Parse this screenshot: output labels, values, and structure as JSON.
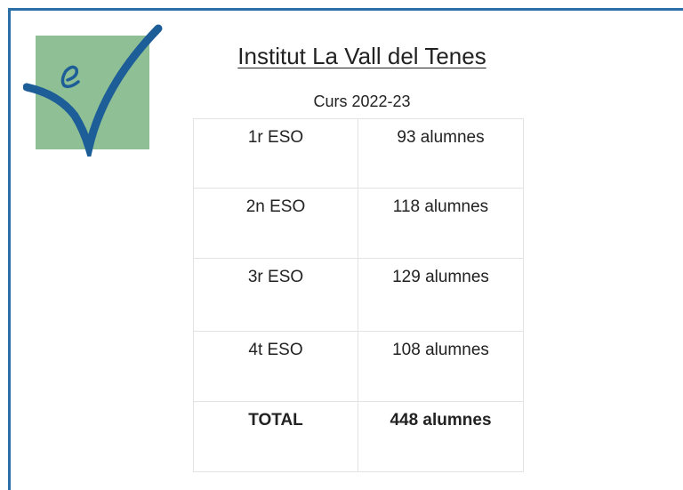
{
  "header": {
    "title": "Institut La Vall del Tenes",
    "subtitle": "Curs 2022-23"
  },
  "table": {
    "rows": [
      [
        "1r ESO",
        "93 alumnes"
      ],
      [
        "2n ESO",
        "118 alumnes"
      ],
      [
        "3r ESO",
        "129 alumnes"
      ],
      [
        "4t ESO",
        "108 alumnes"
      ]
    ],
    "total": [
      "TOTAL",
      "448 alumnes"
    ]
  }
}
